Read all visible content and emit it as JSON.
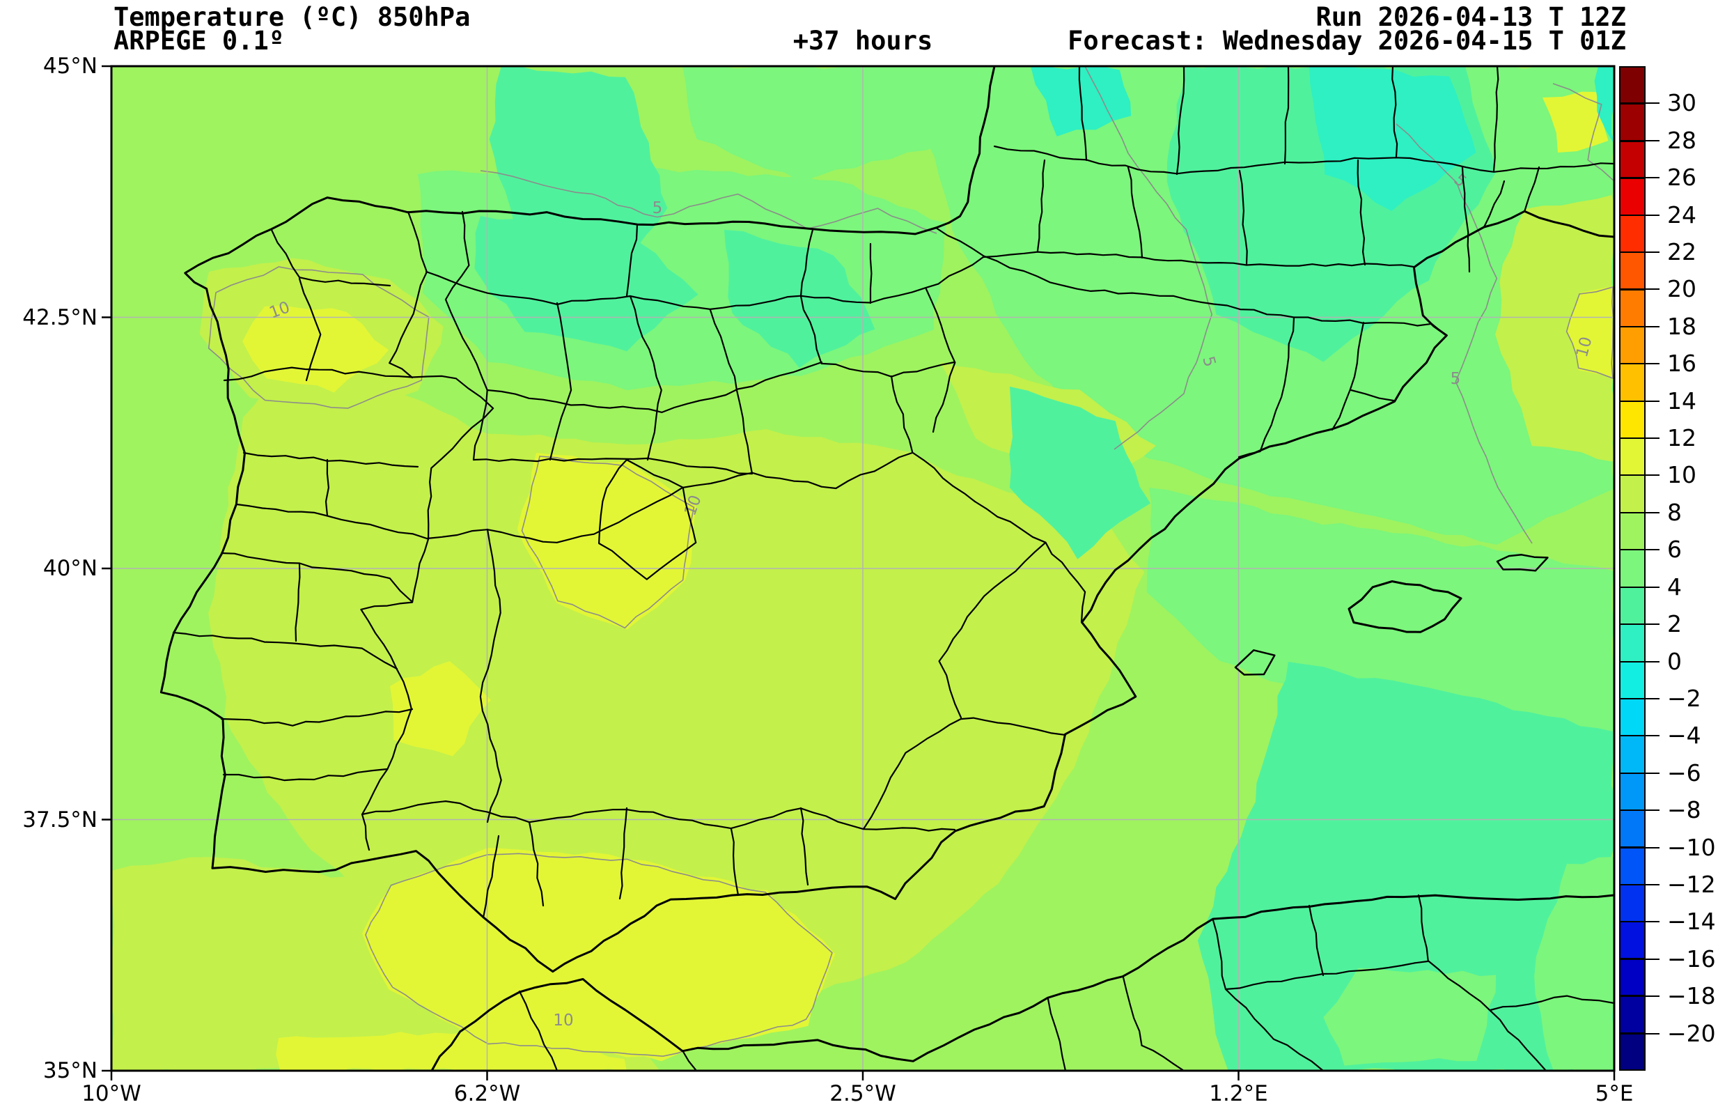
{
  "header": {
    "title": "Temperature (ºC) 850hPa",
    "model": "ARPEGE 0.1º",
    "lead": "+37 hours",
    "run": "Run 2026-04-13 T 12Z",
    "forecast": "Forecast: Wednesday 2026-04-15 T 01Z"
  },
  "axes": {
    "x_ticks": [
      "10°W",
      "6.2°W",
      "2.5°W",
      "1.2°E",
      "5°E"
    ],
    "y_ticks": [
      "45°N",
      "42.5°N",
      "40°N",
      "37.5°N",
      "35°N"
    ]
  },
  "colorbar": {
    "ticks": [
      "30",
      "28",
      "26",
      "24",
      "22",
      "20",
      "18",
      "16",
      "14",
      "12",
      "10",
      "8",
      "6",
      "4",
      "2",
      "0",
      "−2",
      "−4",
      "−6",
      "−8",
      "−10",
      "−12",
      "−14",
      "−16",
      "−18",
      "−20"
    ],
    "segment_keys": [
      "t_over30",
      "t_28_30",
      "t_26_28",
      "t_24_26",
      "t_22_24",
      "t_20_22",
      "t_18_20",
      "t_16_18",
      "t_14_16",
      "t_12_14",
      "t_10_12",
      "t_8_10",
      "t_6_8",
      "t_4_6",
      "t_2_4",
      "t_0_2",
      "t_n2_0",
      "t_n4_n2",
      "t_n6_n4",
      "t_n8_n6",
      "t_n10_n8",
      "t_n12_n10",
      "t_n14_n12",
      "t_n16_n14",
      "t_n18_n16",
      "t_n20_n18",
      "t_under_n20"
    ]
  },
  "palette": {
    "t_over30": "#7f0000",
    "t_28_30": "#9d0000",
    "t_26_28": "#c40000",
    "t_24_26": "#ea0000",
    "t_22_24": "#ff2d00",
    "t_20_22": "#ff5600",
    "t_18_20": "#ff7c00",
    "t_16_18": "#ff9e00",
    "t_14_16": "#ffc000",
    "t_12_14": "#ffe600",
    "t_10_12": "#e2f636",
    "t_8_10": "#c3f04b",
    "t_6_8": "#9ff35f",
    "t_4_6": "#7cf67c",
    "t_2_4": "#50f19d",
    "t_0_2": "#2ef0c2",
    "t_n2_0": "#12eee2",
    "t_n4_n2": "#00d8f8",
    "t_n6_n4": "#00b8f8",
    "t_n8_n6": "#0098f8",
    "t_n10_n8": "#0078f8",
    "t_n12_n10": "#0055f8",
    "t_n14_n12": "#0032f0",
    "t_n16_n14": "#0011e0",
    "t_n18_n16": "#0000c4",
    "t_n20_n18": "#0000a0",
    "t_under_n20": "#000080"
  },
  "map": {
    "contour_labels": {
      "five": "5",
      "ten": "10"
    },
    "line_colors": {
      "border": "#000000",
      "contour": "#8c8c8c",
      "graticule": "#b3b3b3"
    }
  }
}
